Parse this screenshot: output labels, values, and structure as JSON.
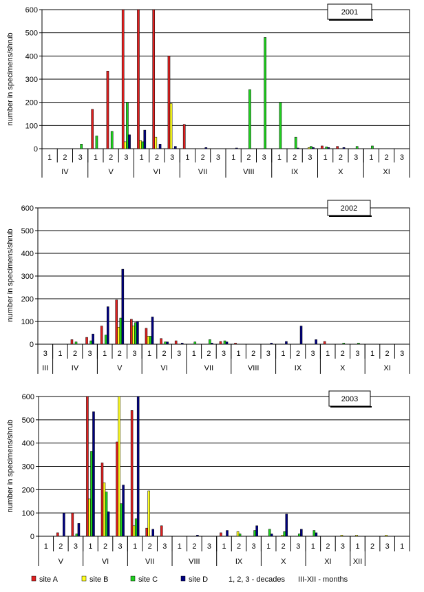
{
  "legend": {
    "items": [
      {
        "name": "site A",
        "color": "#e02020"
      },
      {
        "name": "site B",
        "color": "#ffff20"
      },
      {
        "name": "site C",
        "color": "#20d020"
      },
      {
        "name": "site D",
        "color": "#000080"
      }
    ],
    "note_decades": "1, 2, 3 - decades",
    "note_months": "III-XII - months"
  },
  "chart_data": [
    {
      "type": "bar",
      "title": "2001",
      "ylabel": "number in specimens/shrub",
      "ylim": [
        0,
        600
      ],
      "yticks": [
        0,
        100,
        200,
        300,
        400,
        500,
        600
      ],
      "decades": [
        "1",
        "2",
        "3",
        "1",
        "2",
        "3",
        "1",
        "2",
        "3",
        "1",
        "2",
        "3",
        "1",
        "2",
        "3",
        "1",
        "2",
        "3",
        "1",
        "2",
        "3",
        "1",
        "2",
        "3"
      ],
      "months": [
        {
          "label": "IV",
          "span": 3
        },
        {
          "label": "V",
          "span": 3
        },
        {
          "label": "VI",
          "span": 3
        },
        {
          "label": "VII",
          "span": 3
        },
        {
          "label": "VIII",
          "span": 3
        },
        {
          "label": "IX",
          "span": 3
        },
        {
          "label": "X",
          "span": 3
        },
        {
          "label": "XI",
          "span": 3
        }
      ],
      "series": [
        {
          "name": "site A",
          "values": [
            0,
            0,
            0,
            170,
            335,
            600,
            600,
            600,
            400,
            105,
            0,
            0,
            0,
            0,
            0,
            0,
            0,
            0,
            12,
            10,
            0,
            0,
            0,
            0
          ]
        },
        {
          "name": "site B",
          "values": [
            0,
            0,
            0,
            0,
            0,
            30,
            35,
            50,
            195,
            0,
            0,
            0,
            0,
            0,
            0,
            0,
            0,
            5,
            0,
            0,
            0,
            0,
            0,
            0
          ]
        },
        {
          "name": "site C",
          "values": [
            0,
            0,
            20,
            55,
            75,
            200,
            30,
            0,
            0,
            0,
            0,
            0,
            0,
            255,
            480,
            200,
            50,
            10,
            8,
            0,
            10,
            12,
            0,
            0
          ]
        },
        {
          "name": "site D",
          "values": [
            0,
            0,
            0,
            0,
            0,
            60,
            80,
            20,
            10,
            0,
            5,
            0,
            3,
            0,
            0,
            0,
            3,
            5,
            5,
            5,
            0,
            0,
            0,
            0
          ]
        }
      ]
    },
    {
      "type": "bar",
      "title": "2002",
      "ylabel": "number in specimens/shrub",
      "ylim": [
        0,
        600
      ],
      "yticks": [
        0,
        100,
        200,
        300,
        400,
        500,
        600
      ],
      "decades": [
        "3",
        "1",
        "2",
        "3",
        "1",
        "2",
        "3",
        "1",
        "2",
        "3",
        "1",
        "2",
        "3",
        "1",
        "2",
        "3",
        "1",
        "2",
        "3",
        "1",
        "2",
        "3",
        "1",
        "2",
        "3"
      ],
      "months": [
        {
          "label": "III",
          "span": 1
        },
        {
          "label": "IV",
          "span": 3
        },
        {
          "label": "V",
          "span": 3
        },
        {
          "label": "VI",
          "span": 3
        },
        {
          "label": "VII",
          "span": 3
        },
        {
          "label": "VIII",
          "span": 3
        },
        {
          "label": "IX",
          "span": 3
        },
        {
          "label": "X",
          "span": 3
        },
        {
          "label": "XI",
          "span": 3
        }
      ],
      "series": [
        {
          "name": "site A",
          "values": [
            0,
            0,
            20,
            30,
            80,
            195,
            110,
            70,
            25,
            15,
            0,
            0,
            12,
            5,
            0,
            0,
            0,
            0,
            0,
            12,
            0,
            0,
            0,
            0,
            0
          ]
        },
        {
          "name": "site B",
          "values": [
            0,
            0,
            0,
            0,
            0,
            75,
            80,
            35,
            0,
            0,
            0,
            0,
            0,
            0,
            0,
            0,
            0,
            0,
            0,
            0,
            0,
            0,
            0,
            0,
            0
          ]
        },
        {
          "name": "site C",
          "values": [
            0,
            0,
            10,
            15,
            40,
            115,
            95,
            35,
            10,
            0,
            10,
            20,
            15,
            0,
            0,
            0,
            0,
            0,
            0,
            0,
            5,
            5,
            0,
            0,
            0
          ]
        },
        {
          "name": "site D",
          "values": [
            0,
            0,
            0,
            45,
            165,
            330,
            100,
            120,
            10,
            5,
            0,
            5,
            10,
            0,
            0,
            5,
            12,
            80,
            20,
            0,
            0,
            0,
            0,
            0,
            0
          ]
        }
      ]
    },
    {
      "type": "bar",
      "title": "2003",
      "ylabel": "number in specimens/shrub",
      "ylim": [
        0,
        600
      ],
      "yticks": [
        0,
        100,
        200,
        300,
        400,
        500,
        600
      ],
      "decades": [
        "1",
        "2",
        "3",
        "1",
        "2",
        "3",
        "1",
        "2",
        "3",
        "1",
        "2",
        "3",
        "1",
        "2",
        "3",
        "1",
        "2",
        "3",
        "1",
        "2",
        "3",
        "1",
        "2",
        "3",
        "1"
      ],
      "months": [
        {
          "label": "V",
          "span": 3
        },
        {
          "label": "VI",
          "span": 3
        },
        {
          "label": "VII",
          "span": 3
        },
        {
          "label": "VIII",
          "span": 3
        },
        {
          "label": "IX",
          "span": 3
        },
        {
          "label": "X",
          "span": 3
        },
        {
          "label": "XI",
          "span": 3
        },
        {
          "label": "XII",
          "span": 1
        }
      ],
      "series": [
        {
          "name": "site A",
          "values": [
            0,
            15,
            100,
            600,
            315,
            405,
            540,
            35,
            45,
            0,
            0,
            0,
            15,
            0,
            0,
            0,
            0,
            0,
            0,
            0,
            0,
            0,
            0,
            0,
            0
          ]
        },
        {
          "name": "site B",
          "values": [
            0,
            0,
            0,
            160,
            230,
            600,
            45,
            195,
            0,
            0,
            0,
            0,
            0,
            20,
            0,
            0,
            5,
            0,
            0,
            0,
            5,
            5,
            0,
            5,
            0
          ]
        },
        {
          "name": "site C",
          "values": [
            0,
            0,
            10,
            365,
            190,
            140,
            75,
            0,
            0,
            0,
            0,
            0,
            0,
            10,
            25,
            30,
            20,
            10,
            25,
            0,
            0,
            0,
            0,
            0,
            0
          ]
        },
        {
          "name": "site D",
          "values": [
            0,
            100,
            55,
            535,
            105,
            220,
            600,
            30,
            0,
            0,
            5,
            0,
            25,
            0,
            45,
            10,
            95,
            30,
            15,
            0,
            0,
            0,
            0,
            0,
            0
          ]
        }
      ]
    }
  ]
}
